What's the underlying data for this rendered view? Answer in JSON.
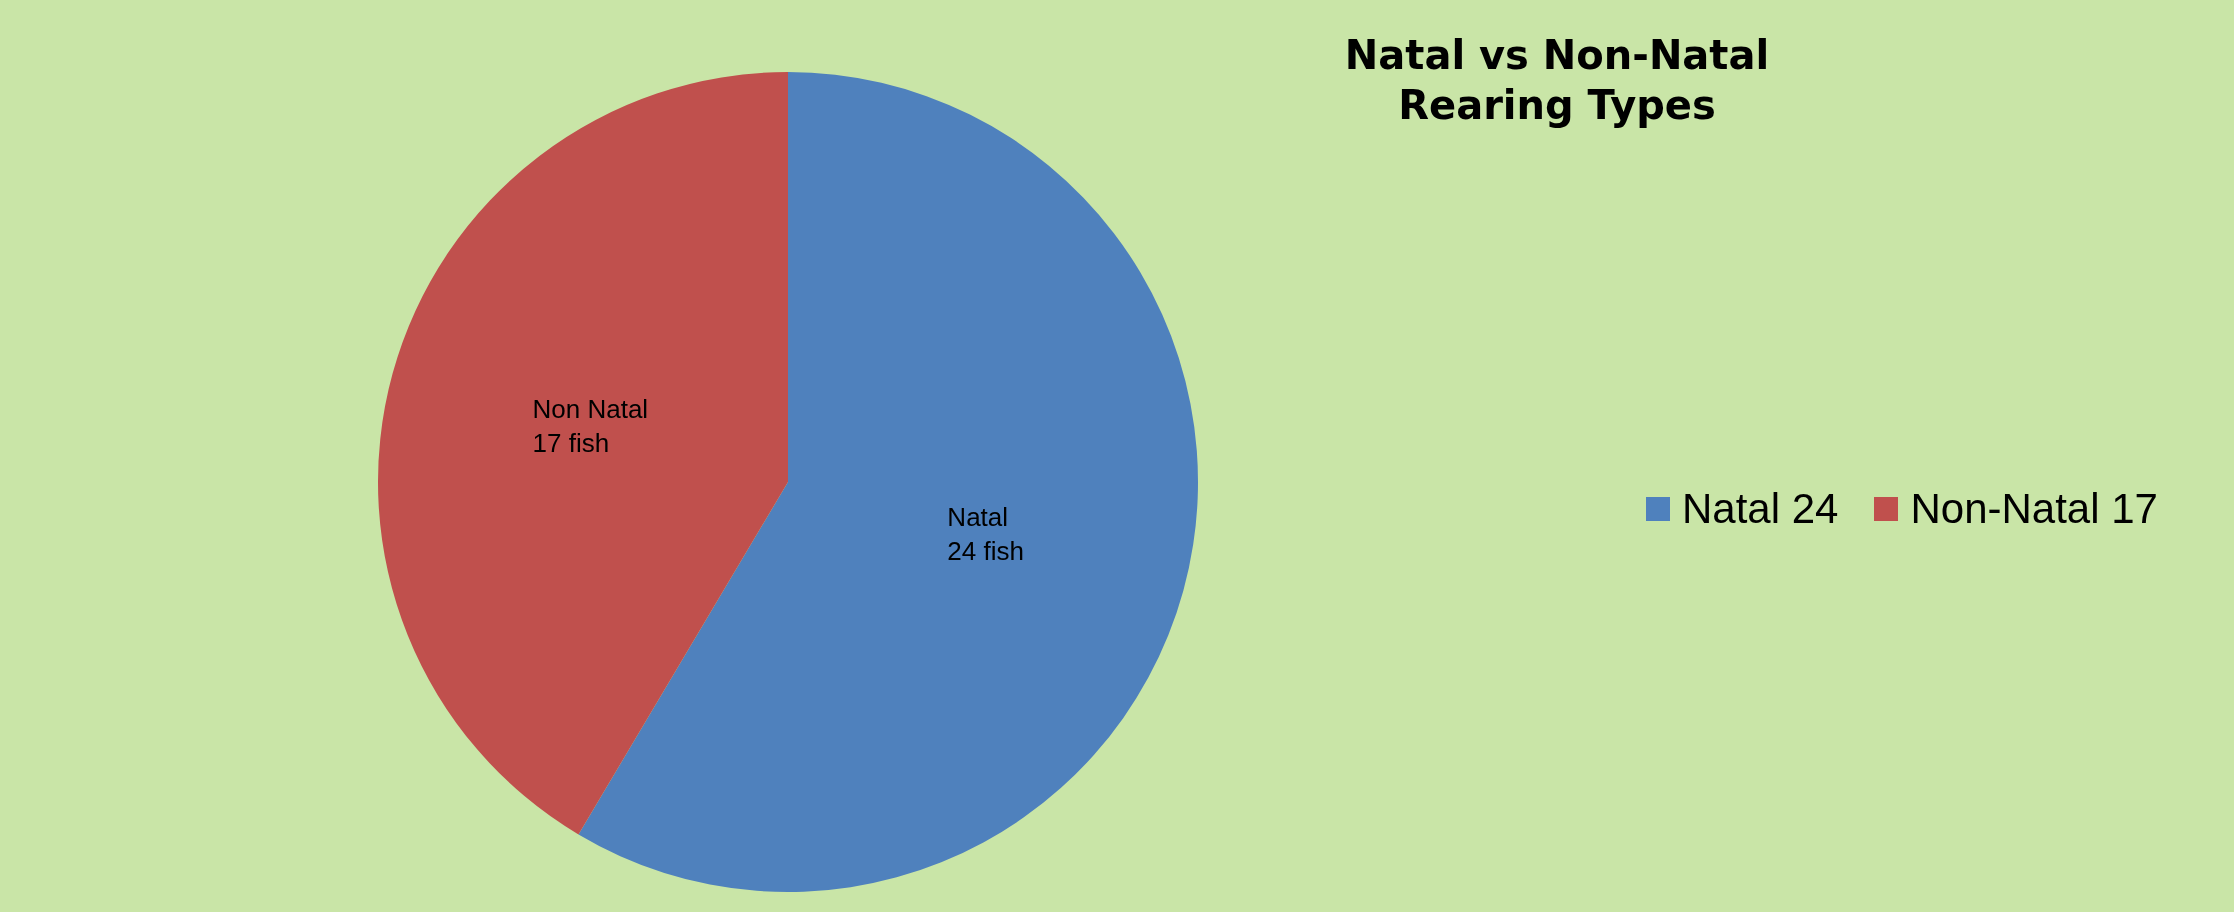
{
  "chart_data": {
    "type": "pie",
    "title": "Natal vs Non-Natal\nRearing Types",
    "categories": [
      "Natal 24",
      "Non-Natal 17"
    ],
    "values": [
      24,
      17
    ],
    "colors": [
      "#4f81bd",
      "#c0504d"
    ],
    "value_labels": [
      "Natal\n24 fish",
      "Non Natal\n17 fish"
    ],
    "legend": "right"
  }
}
